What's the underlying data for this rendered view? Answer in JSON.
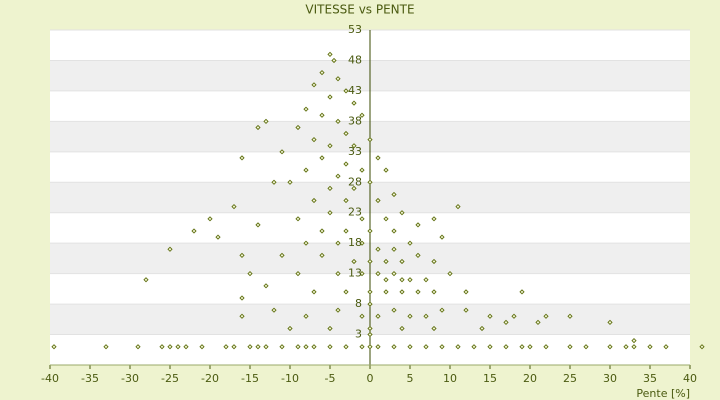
{
  "chart_data": {
    "type": "scatter",
    "title": "VITESSE vs PENTE",
    "x_label": "Pente [%]",
    "color": "#5f6f10",
    "xlim": [
      -40,
      40
    ],
    "xticks": [
      -40,
      -35,
      -30,
      -25,
      -20,
      -15,
      -10,
      -5,
      0,
      5,
      10,
      15,
      20,
      25,
      30,
      35,
      40
    ],
    "ylim": [
      -2,
      53
    ],
    "yticks": [
      53,
      48,
      43,
      38,
      33,
      28,
      23,
      18,
      13,
      8,
      3
    ],
    "x": [
      -39.5,
      -33,
      -29,
      -26,
      -25,
      -24,
      -23,
      -21,
      -18,
      -17,
      -15,
      -14,
      -13,
      -11,
      -9,
      -8,
      -7,
      -5,
      -3,
      -1,
      0,
      1,
      3,
      5,
      7,
      9,
      11,
      13,
      15,
      17,
      19,
      20,
      22,
      25,
      27,
      30,
      32,
      33,
      35,
      37,
      41.5,
      -5,
      -4.5,
      -6,
      -4,
      -7,
      -3,
      -5,
      -8,
      -2,
      -6,
      -4,
      -1,
      -9,
      -3,
      -13,
      -14,
      -7,
      -5,
      -2,
      0,
      -11,
      -16,
      -6,
      -3,
      1,
      -8,
      -4,
      -1,
      2,
      -12,
      -10,
      -5,
      -2,
      0,
      -17,
      -7,
      -3,
      1,
      3,
      -20,
      -9,
      -5,
      -1,
      2,
      4,
      11,
      -22,
      -14,
      -6,
      -3,
      0,
      3,
      6,
      8,
      -19,
      -25,
      -8,
      -4,
      -1,
      1,
      3,
      5,
      9,
      -16,
      -11,
      -6,
      -2,
      0,
      2,
      4,
      6,
      8,
      -28,
      -15,
      -9,
      -4,
      -1,
      1,
      2,
      3,
      4,
      5,
      7,
      10,
      -16,
      -13,
      -7,
      -3,
      0,
      2,
      4,
      6,
      8,
      12,
      19,
      -16,
      -12,
      -8,
      -4,
      -1,
      1,
      3,
      5,
      7,
      9,
      12,
      15,
      18,
      22,
      25,
      -10,
      -5,
      0,
      4,
      8,
      14,
      17,
      21,
      30,
      33,
      0,
      0
    ],
    "y": [
      1,
      1,
      1,
      1,
      1,
      1,
      1,
      1,
      1,
      1,
      1,
      1,
      1,
      1,
      1,
      1,
      1,
      1,
      1,
      1,
      1,
      1,
      1,
      1,
      1,
      1,
      1,
      1,
      1,
      1,
      1,
      1,
      1,
      1,
      1,
      1,
      1,
      1,
      1,
      1,
      1,
      49,
      48,
      46,
      45,
      44,
      43,
      42,
      40,
      41,
      39,
      38,
      39,
      37,
      36,
      38,
      37,
      35,
      34,
      34,
      35,
      33,
      32,
      32,
      31,
      32,
      30,
      29,
      30,
      30,
      28,
      28,
      27,
      27,
      28,
      24,
      25,
      25,
      25,
      26,
      22,
      22,
      23,
      22,
      22,
      23,
      24,
      20,
      21,
      20,
      20,
      20,
      20,
      21,
      22,
      19,
      17,
      18,
      18,
      18,
      17,
      17,
      18,
      19,
      16,
      16,
      16,
      15,
      15,
      15,
      15,
      16,
      15,
      12,
      13,
      13,
      13,
      13,
      13,
      12,
      13,
      12,
      12,
      12,
      13,
      9,
      11,
      10,
      10,
      10,
      10,
      10,
      10,
      10,
      10,
      10,
      6,
      7,
      6,
      7,
      6,
      6,
      7,
      6,
      6,
      7,
      7,
      6,
      6,
      6,
      6,
      4,
      4,
      4,
      4,
      4,
      4,
      5,
      5,
      5,
      2,
      8,
      3
    ]
  }
}
